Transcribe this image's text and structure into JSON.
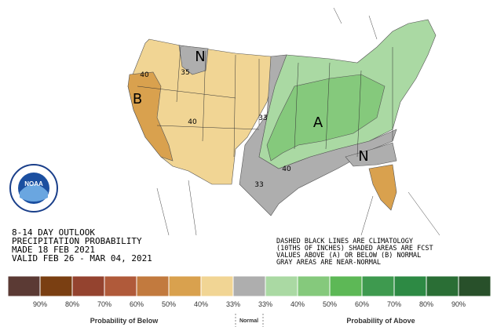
{
  "header": {
    "lines": [
      "8-14 DAY OUTLOOK",
      "PRECIPITATION PROBABILITY",
      "MADE  18 FEB 2021",
      "VALID  FEB 26 - MAR 04, 2021"
    ]
  },
  "note": {
    "lines": [
      "DASHED BLACK LINES ARE CLIMATOLOGY",
      "(10THS OF INCHES) SHADED AREAS ARE FCST",
      "VALUES ABOVE (A) OR BELOW (B) NORMAL",
      "GRAY AREAS ARE NEAR-NORMAL"
    ]
  },
  "logo": {
    "text": "NOAA"
  },
  "map": {
    "labels": [
      "B",
      "A",
      "N",
      "N"
    ],
    "contours": [
      "40",
      "35",
      "40",
      "33",
      "40",
      "33"
    ]
  },
  "legend": {
    "colors": [
      "#5b3a34",
      "#7a3f12",
      "#94432f",
      "#b05a3a",
      "#c27a3e",
      "#d9a14e",
      "#f1d594",
      "#aeaeae",
      "#aad9a3",
      "#85c97c",
      "#5db856",
      "#3e9a4f",
      "#2d8a44",
      "#2a6e35",
      "#28502a"
    ],
    "ticks": [
      "90%",
      "80%",
      "70%",
      "60%",
      "50%",
      "40%",
      "33%",
      "33%",
      "40%",
      "50%",
      "60%",
      "70%",
      "80%",
      "90%"
    ],
    "below": "Probability of Below",
    "normal": "Normal",
    "above": "Probability of Above"
  }
}
